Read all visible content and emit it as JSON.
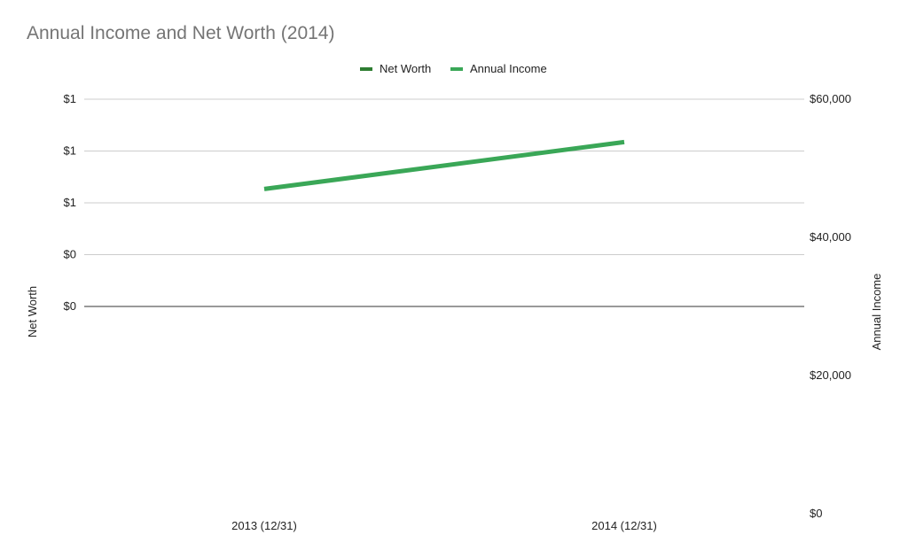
{
  "chart_data": {
    "type": "line",
    "title": "Annual Income and Net Worth (2014)",
    "categories": [
      "2013 (12/31)",
      "2014 (12/31)"
    ],
    "series": [
      {
        "name": "Net Worth",
        "axis": "left",
        "values": [
          0,
          0
        ],
        "color": "#2e7d32"
      },
      {
        "name": "Annual Income",
        "axis": "right",
        "values": [
          47000,
          53800
        ],
        "color": "#3aa757"
      }
    ],
    "y_left": {
      "label": "Net Worth",
      "ticks": [
        "$0",
        "$0",
        "$1",
        "$1",
        "$1"
      ]
    },
    "y_right": {
      "label": "Annual Income",
      "range": [
        0,
        60000
      ],
      "ticks": [
        {
          "value": 0,
          "label": "$0"
        },
        {
          "value": 20000,
          "label": "$20,000"
        },
        {
          "value": 40000,
          "label": "$40,000"
        },
        {
          "value": 60000,
          "label": "$60,000"
        }
      ]
    },
    "legend_position": "top",
    "grid": true
  }
}
